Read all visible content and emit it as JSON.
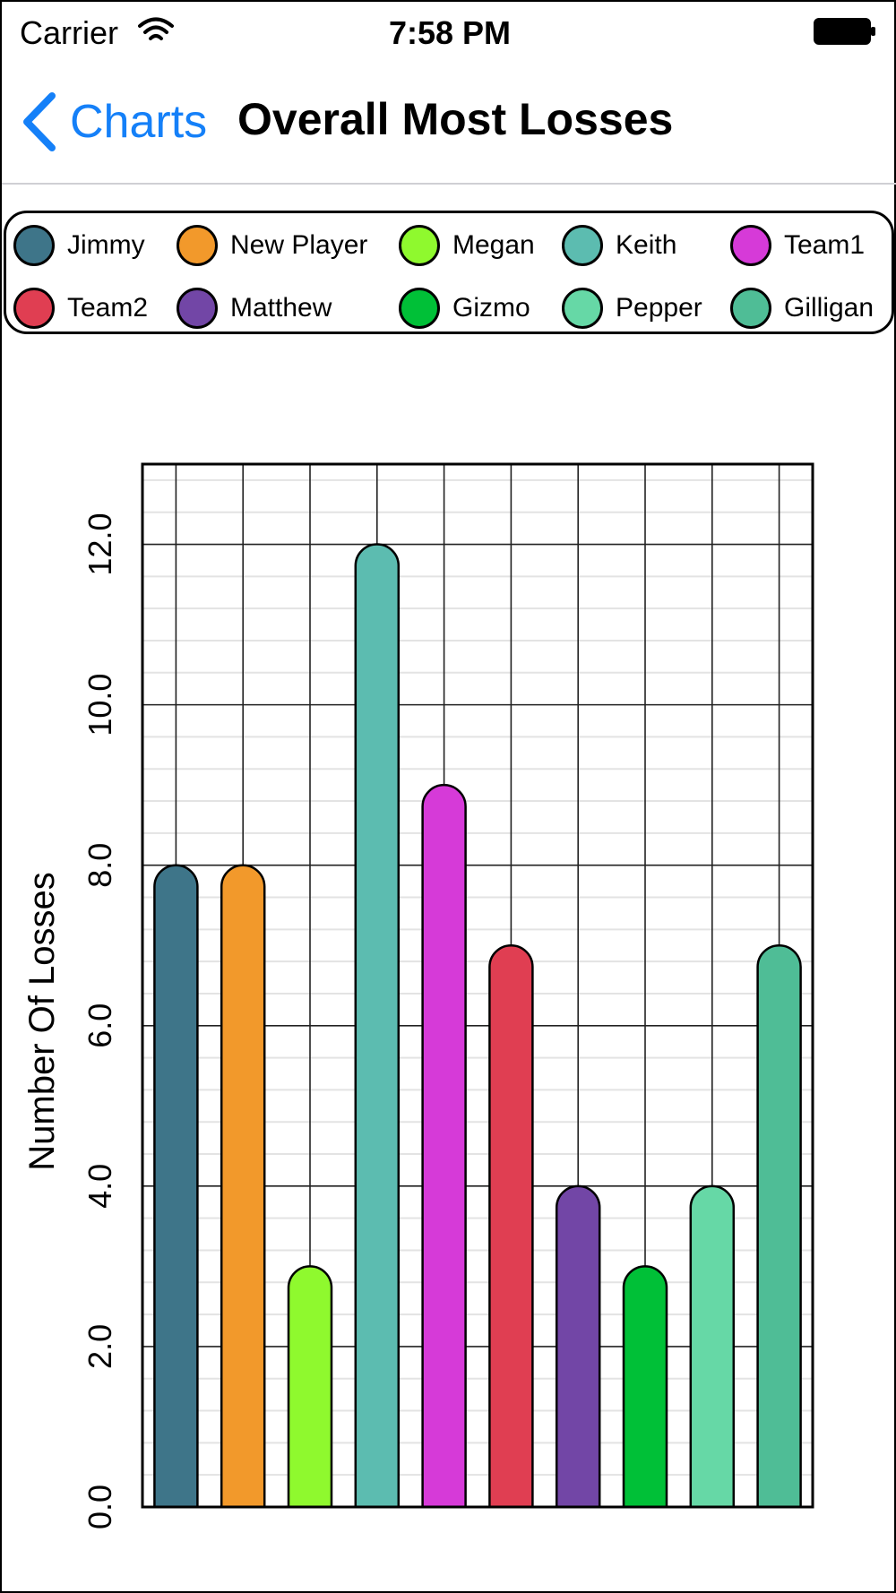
{
  "status_bar": {
    "carrier": "Carrier",
    "time": "7:58 PM"
  },
  "nav": {
    "back_label": "Charts",
    "title": "Overall Most Losses",
    "accent_color": "#1580f8"
  },
  "chart_data": {
    "type": "bar",
    "categories": [
      "Jimmy",
      "New Player",
      "Megan",
      "Keith",
      "Team1",
      "Team2",
      "Matthew",
      "Gizmo",
      "Pepper",
      "Gilligan"
    ],
    "values": [
      8,
      8,
      3,
      12,
      9,
      7,
      4,
      3,
      4,
      7
    ],
    "colors": [
      "#3e7589",
      "#f2992b",
      "#8ff92e",
      "#5cbcb0",
      "#d63ad8",
      "#e03e52",
      "#7246a6",
      "#00c037",
      "#66d8a6",
      "#4fbd96"
    ],
    "ylabel": "Number Of Losses",
    "ylim": [
      0,
      13
    ],
    "yticks": [
      "0.0",
      "2.0",
      "4.0",
      "6.0",
      "8.0",
      "10.0",
      "12.0"
    ],
    "grid": true,
    "legend_position": "top"
  }
}
